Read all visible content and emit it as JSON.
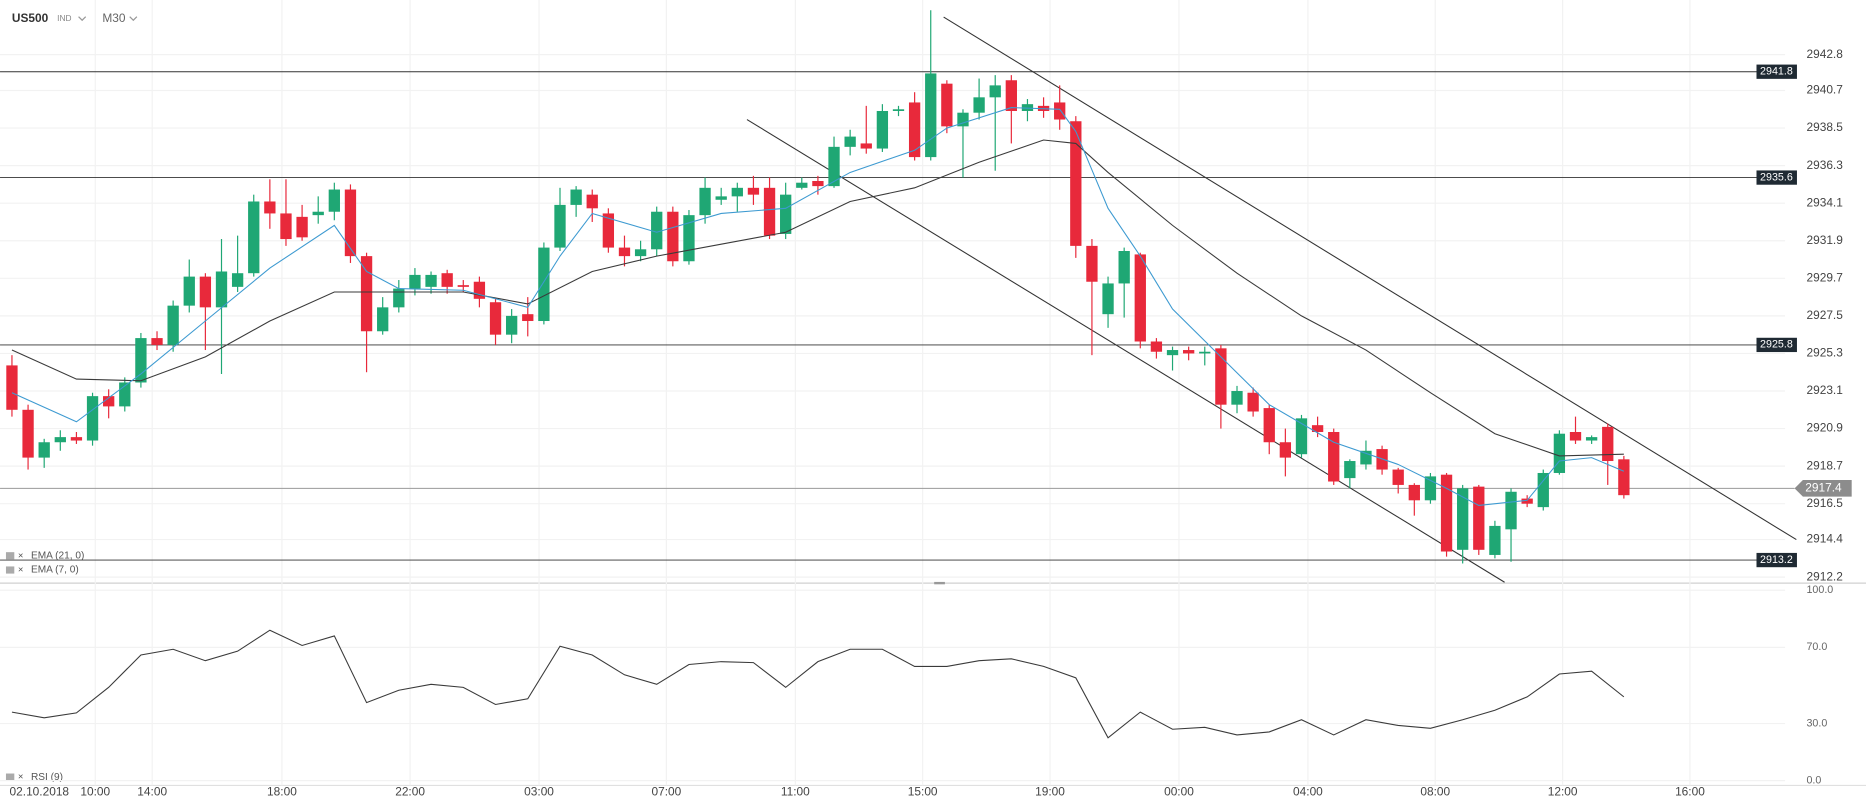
{
  "chart_data": {
    "type": "candlestick",
    "symbol": "US500",
    "instrument_type": "IND",
    "timeframe": "M30",
    "date_label": "02.10.2018",
    "open": [
      2924.6,
      2922.0,
      2919.2,
      2920.1,
      2920.4,
      2920.2,
      2922.8,
      2922.2,
      2923.6,
      2926.2,
      2925.8,
      2928.1,
      2929.8,
      2928.0,
      2929.2,
      2930.0,
      2934.2,
      2933.5,
      2933.3,
      2933.4,
      2933.6,
      2934.9,
      2931.0,
      2926.6,
      2928.0,
      2929.1,
      2929.2,
      2930.0,
      2929.3,
      2929.5,
      2928.3,
      2926.4,
      2927.6,
      2927.2,
      2931.5,
      2934.0,
      2934.6,
      2933.5,
      2931.5,
      2931.0,
      2931.4,
      2933.6,
      2930.7,
      2933.4,
      2934.3,
      2934.5,
      2935.0,
      2935.0,
      2932.3,
      2935.0,
      2935.4,
      2935.1,
      2937.4,
      2937.6,
      2937.3,
      2939.5,
      2940.0,
      2936.8,
      2941.1,
      2938.6,
      2939.4,
      2940.3,
      2941.3,
      2939.5,
      2939.8,
      2940.0,
      2938.9,
      2931.6,
      2927.6,
      2929.4,
      2931.1,
      2926.0,
      2925.2,
      2925.5,
      2925.3,
      2925.6,
      2922.3,
      2923.0,
      2922.1,
      2920.1,
      2919.4,
      2921.1,
      2920.7,
      2918.0,
      2918.8,
      2919.7,
      2918.5,
      2917.6,
      2916.7,
      2918.2,
      2913.8,
      2917.5,
      2913.5,
      2915.0,
      2916.8,
      2916.3,
      2918.3,
      2920.7,
      2920.2,
      2921.0,
      2919.1
    ],
    "high": [
      2925.2,
      2922.3,
      2920.3,
      2920.8,
      2920.7,
      2923.0,
      2923.2,
      2923.9,
      2926.5,
      2926.6,
      2928.4,
      2930.8,
      2930.0,
      2932.0,
      2932.2,
      2934.6,
      2935.5,
      2935.5,
      2934.0,
      2934.5,
      2935.3,
      2935.2,
      2931.2,
      2928.6,
      2929.6,
      2930.3,
      2930.1,
      2930.2,
      2929.6,
      2929.8,
      2928.5,
      2927.9,
      2928.6,
      2931.8,
      2935.0,
      2935.1,
      2934.9,
      2933.8,
      2932.2,
      2931.9,
      2933.9,
      2933.9,
      2933.7,
      2935.6,
      2935.0,
      2935.3,
      2935.7,
      2935.6,
      2935.3,
      2935.6,
      2935.7,
      2938.0,
      2938.4,
      2939.8,
      2939.9,
      2939.8,
      2940.6,
      2945.4,
      2941.3,
      2939.6,
      2941.4,
      2941.6,
      2941.6,
      2940.2,
      2940.3,
      2941.0,
      2939.2,
      2932.0,
      2929.8,
      2931.5,
      2931.2,
      2926.2,
      2925.7,
      2925.7,
      2925.7,
      2925.8,
      2923.4,
      2923.3,
      2922.3,
      2920.9,
      2921.7,
      2921.6,
      2920.9,
      2919.1,
      2920.2,
      2919.9,
      2918.6,
      2917.7,
      2918.3,
      2918.3,
      2917.6,
      2917.6,
      2915.5,
      2917.4,
      2917.0,
      2918.5,
      2920.8,
      2921.6,
      2920.5,
      2921.2,
      2919.3
    ],
    "low": [
      2921.6,
      2918.5,
      2918.6,
      2919.6,
      2920.0,
      2919.9,
      2921.5,
      2921.9,
      2923.3,
      2925.5,
      2925.4,
      2927.7,
      2925.5,
      2924.1,
      2928.9,
      2929.8,
      2932.6,
      2931.6,
      2931.9,
      2932.9,
      2933.1,
      2930.6,
      2924.2,
      2926.4,
      2927.7,
      2928.7,
      2928.8,
      2928.8,
      2928.9,
      2928.0,
      2925.8,
      2925.9,
      2926.3,
      2927.0,
      2931.3,
      2933.3,
      2933.0,
      2931.2,
      2930.4,
      2930.7,
      2931.0,
      2930.4,
      2930.5,
      2932.9,
      2934.0,
      2933.6,
      2934.0,
      2932.0,
      2932.0,
      2934.9,
      2934.6,
      2935.0,
      2936.9,
      2937.0,
      2937.1,
      2939.2,
      2936.6,
      2936.6,
      2938.2,
      2935.6,
      2939.0,
      2936.0,
      2937.6,
      2938.9,
      2939.1,
      2938.4,
      2930.9,
      2925.2,
      2926.8,
      2927.4,
      2925.6,
      2925.0,
      2924.3,
      2924.9,
      2924.6,
      2920.9,
      2921.8,
      2921.6,
      2919.4,
      2918.1,
      2919.2,
      2920.4,
      2917.6,
      2917.4,
      2918.5,
      2918.2,
      2917.1,
      2915.8,
      2916.5,
      2913.4,
      2913.0,
      2913.5,
      2913.3,
      2913.1,
      2916.3,
      2916.1,
      2918.2,
      2920.0,
      2920.0,
      2917.6,
      2916.8
    ],
    "close": [
      2922.0,
      2919.2,
      2920.1,
      2920.4,
      2920.2,
      2922.8,
      2922.2,
      2923.6,
      2926.2,
      2925.8,
      2928.1,
      2929.8,
      2928.0,
      2930.1,
      2930.0,
      2934.2,
      2933.5,
      2932.0,
      2932.1,
      2933.6,
      2934.9,
      2931.0,
      2926.6,
      2928.0,
      2929.1,
      2929.9,
      2929.9,
      2929.2,
      2929.2,
      2928.5,
      2926.4,
      2927.5,
      2927.2,
      2931.5,
      2934.0,
      2934.9,
      2933.8,
      2931.5,
      2931.0,
      2931.4,
      2933.6,
      2930.7,
      2933.4,
      2935.0,
      2934.5,
      2935.0,
      2934.6,
      2932.2,
      2934.6,
      2935.3,
      2935.1,
      2937.4,
      2938.0,
      2937.3,
      2939.5,
      2939.6,
      2936.8,
      2941.7,
      2938.6,
      2939.4,
      2940.3,
      2941.0,
      2939.5,
      2939.9,
      2939.5,
      2939.0,
      2931.6,
      2929.5,
      2929.4,
      2931.3,
      2926.0,
      2925.4,
      2925.5,
      2925.3,
      2925.4,
      2922.3,
      2923.1,
      2921.9,
      2920.1,
      2919.2,
      2921.5,
      2920.7,
      2917.8,
      2919.0,
      2919.6,
      2918.5,
      2917.6,
      2916.7,
      2918.1,
      2913.7,
      2917.4,
      2913.8,
      2915.2,
      2917.2,
      2916.5,
      2918.3,
      2920.6,
      2920.2,
      2920.4,
      2919.0,
      2917.0
    ],
    "up_color": "#1fa774",
    "down_color": "#e8293b",
    "series": [
      {
        "name": "EMA (21, 0)",
        "color": "#3a3a3a",
        "x": [
          0,
          4,
          8,
          12,
          16,
          20,
          24,
          28,
          32,
          36,
          40,
          44,
          48,
          52,
          56,
          60,
          64,
          66,
          68,
          72,
          76,
          80,
          84,
          88,
          92,
          96,
          100
        ],
        "values": [
          2925.5,
          2923.8,
          2923.7,
          2925.1,
          2927.2,
          2928.9,
          2928.9,
          2928.9,
          2928.2,
          2930.1,
          2931.0,
          2931.7,
          2932.4,
          2934.2,
          2935.0,
          2936.5,
          2937.8,
          2937.6,
          2935.9,
          2932.8,
          2930.0,
          2927.5,
          2925.5,
          2923.0,
          2920.6,
          2919.3,
          2919.4
        ]
      },
      {
        "name": "EMA (7, 0)",
        "color": "#3d9ad1",
        "x": [
          0,
          4,
          8,
          12,
          16,
          20,
          22,
          24,
          28,
          32,
          34,
          36,
          40,
          44,
          48,
          52,
          56,
          58,
          62,
          65,
          66,
          68,
          70,
          72,
          75,
          78,
          82,
          86,
          89,
          91,
          94,
          96,
          98,
          100
        ],
        "values": [
          2923.0,
          2921.3,
          2924.1,
          2927.2,
          2930.3,
          2932.8,
          2930.1,
          2929.1,
          2929.0,
          2928.0,
          2931.0,
          2933.5,
          2932.4,
          2933.5,
          2933.8,
          2935.9,
          2937.2,
          2938.5,
          2939.7,
          2939.6,
          2938.3,
          2933.8,
          2931.0,
          2927.9,
          2925.1,
          2922.3,
          2920.1,
          2918.8,
          2917.4,
          2916.4,
          2916.7,
          2919.0,
          2919.2,
          2918.4
        ]
      }
    ],
    "levels": [
      2941.8,
      2935.6,
      2925.8,
      2913.2
    ],
    "last_price": 2917.4,
    "trendlines": [
      {
        "x": [
          57.8,
          110.7
        ],
        "y": [
          2945.0,
          2914.4
        ]
      },
      {
        "x": [
          45.6,
          92.6
        ],
        "y": [
          2939.0,
          2911.9
        ]
      }
    ],
    "xlim": [
      -0.74,
      110
    ],
    "ylim": [
      2911.85,
      2946.0
    ],
    "yticks": [
      2942.8,
      2940.7,
      2938.5,
      2936.3,
      2934.1,
      2931.9,
      2929.7,
      2927.5,
      2925.3,
      2923.1,
      2920.9,
      2918.7,
      2916.5,
      2914.4,
      2912.2
    ],
    "xticks": [
      {
        "value": 5.17,
        "label": "10:00"
      },
      {
        "value": 8.7,
        "label": "14:00"
      },
      {
        "value": 16.75,
        "label": "18:00"
      },
      {
        "value": 24.7,
        "label": "22:00"
      },
      {
        "value": 32.7,
        "label": "03:00"
      },
      {
        "value": 40.6,
        "label": "07:00"
      },
      {
        "value": 48.6,
        "label": "11:00"
      },
      {
        "value": 56.5,
        "label": "15:00"
      },
      {
        "value": 64.4,
        "label": "19:00"
      },
      {
        "value": 72.4,
        "label": "00:00"
      },
      {
        "value": 80.4,
        "label": "04:00"
      },
      {
        "value": 88.3,
        "label": "08:00"
      },
      {
        "value": 96.2,
        "label": "12:00"
      },
      {
        "value": 104.1,
        "label": "16:00"
      }
    ],
    "grid": true,
    "rsi": {
      "name": "RSI (9)",
      "color": "#3a3a3a",
      "x": [
        0,
        2,
        4,
        6,
        8,
        10,
        12,
        14,
        16,
        18,
        20,
        22,
        24,
        26,
        28,
        30,
        32,
        34,
        36,
        38,
        40,
        42,
        44,
        46,
        48,
        50,
        52,
        54,
        56,
        58,
        60,
        62,
        64,
        66,
        68,
        70,
        72,
        74,
        76,
        78,
        80,
        82,
        84,
        86,
        88,
        90,
        92,
        94,
        96,
        98,
        100
      ],
      "values": [
        36,
        33,
        35.6,
        49,
        66,
        69,
        63,
        68,
        79,
        71,
        76,
        41,
        47.5,
        50.6,
        49,
        40,
        43,
        70.6,
        66,
        55.6,
        50.6,
        61,
        62.5,
        62,
        49,
        62.5,
        69,
        69,
        60,
        60,
        63,
        64,
        60,
        54,
        22.5,
        36,
        27,
        28,
        24,
        25.6,
        32,
        24,
        32,
        29,
        27.5,
        32,
        37,
        44,
        56,
        57.5,
        44
      ],
      "ylim": [
        0,
        100
      ],
      "yticks": [
        {
          "value": 100,
          "label": "100.0"
        },
        {
          "value": 70,
          "label": "70.0"
        },
        {
          "value": 30,
          "label": "30.0"
        },
        {
          "value": 0,
          "label": "0.0"
        }
      ]
    }
  }
}
